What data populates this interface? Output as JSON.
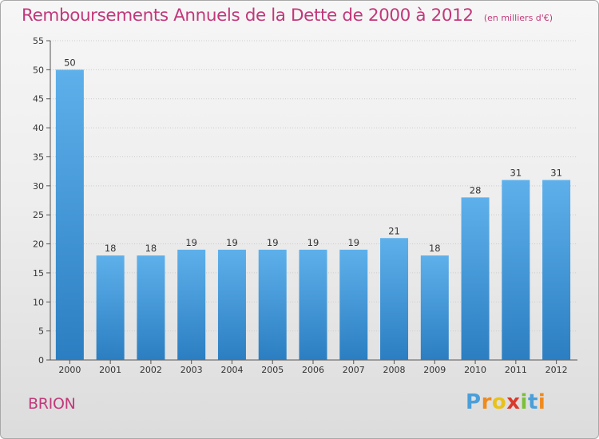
{
  "title": "Remboursements Annuels de la Dette de 2000 à 2012",
  "subtitle": "(en milliers d'€)",
  "commune": "BRION",
  "logo": {
    "letters": [
      "P",
      "r",
      "o",
      "x",
      "i",
      "t",
      "i"
    ],
    "colors": [
      "#4a9fd9",
      "#f08a1c",
      "#e8c21a",
      "#d93a2b",
      "#7bbf3a",
      "#4a9fd9",
      "#f08a1c"
    ]
  },
  "colors": {
    "title": "#c2387a",
    "bar_top": "#5eb0eb",
    "bar_bottom": "#2b7ec1",
    "grid": "#cccccc"
  },
  "chart_data": {
    "type": "bar",
    "categories": [
      "2000",
      "2001",
      "2002",
      "2003",
      "2004",
      "2005",
      "2006",
      "2007",
      "2008",
      "2009",
      "2010",
      "2011",
      "2012"
    ],
    "values": [
      50,
      18,
      18,
      19,
      19,
      19,
      19,
      19,
      21,
      18,
      28,
      31,
      31
    ],
    "value_labels": [
      "50",
      "18",
      "18",
      "19",
      "19",
      "19",
      "19",
      "19",
      "21",
      "18",
      "28",
      "31",
      "31"
    ],
    "ylim": [
      0,
      55
    ],
    "yticks": [
      0,
      5,
      10,
      15,
      20,
      25,
      30,
      35,
      40,
      45,
      50,
      55
    ],
    "ytick_labels": [
      "0",
      "5",
      "10",
      "15",
      "20",
      "25",
      "30",
      "35",
      "40",
      "45",
      "50",
      "55"
    ],
    "grid": true,
    "legend": "none"
  }
}
